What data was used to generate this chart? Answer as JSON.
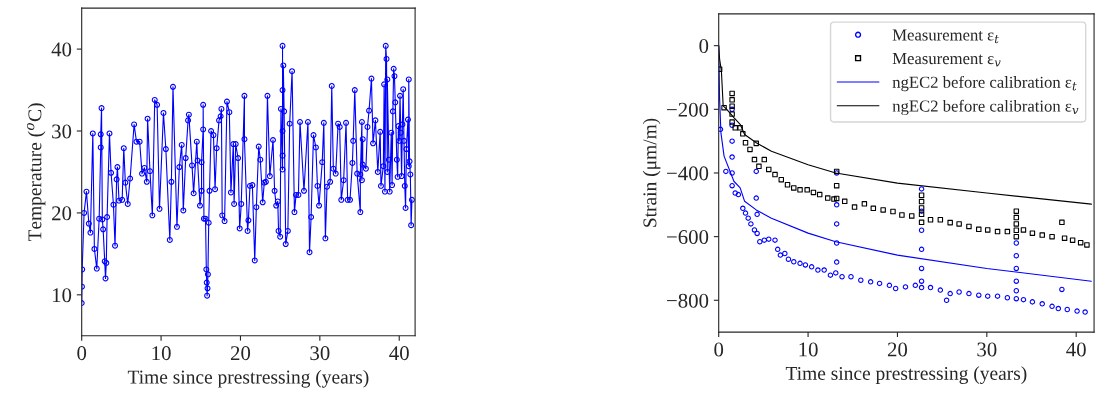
{
  "chart_data": [
    {
      "type": "line",
      "xlabel": "Time since prestressing (years)",
      "ylabel": "Temperature ($^{o}$C)",
      "xlim": [
        0,
        42
      ],
      "ylim": [
        5,
        45
      ],
      "xticks": [
        0,
        10,
        20,
        30,
        40
      ],
      "yticks": [
        10,
        20,
        30,
        40
      ],
      "grid": false,
      "legend": false,
      "series": [
        {
          "color": "#0000ff",
          "marker": "circle",
          "line_style": "solid",
          "x": [
            0,
            0.03,
            0.06,
            0.3,
            0.6,
            0.9,
            1.1,
            1.4,
            1.6,
            1.9,
            2.2,
            2.4,
            2.4,
            2.5,
            2.6,
            2.7,
            2.9,
            3.0,
            3.1,
            3.2,
            3.5,
            3.7,
            4.0,
            4.2,
            4.4,
            4.5,
            4.7,
            5.1,
            5.3,
            5.5,
            5.8,
            6.1,
            6.6,
            6.9,
            7.3,
            7.6,
            7.9,
            8.2,
            8.3,
            8.6,
            8.9,
            9.2,
            9.5,
            9.8,
            10.3,
            10.6,
            11.1,
            11.3,
            11.5,
            12.0,
            12.3,
            12.6,
            12.8,
            13.1,
            13.4,
            13.5,
            13.9,
            14.1,
            14.5,
            14.6,
            14.9,
            15.1,
            15.1,
            15.3,
            15.3,
            15.4,
            15.6,
            15.7,
            15.75,
            15.8,
            15.85,
            15.9,
            16.0,
            16.1,
            16.3,
            16.6,
            16.8,
            17.0,
            17.3,
            17.5,
            17.6,
            17.7,
            18.0,
            18.3,
            18.6,
            18.8,
            19.1,
            19.2,
            19.4,
            19.7,
            19.9,
            20.1,
            20.5,
            20.5,
            20.9,
            21.0,
            21.2,
            21.5,
            21.8,
            22.0,
            22.3,
            22.5,
            22.8,
            23.0,
            23.2,
            23.4,
            23.7,
            24.1,
            24.3,
            24.5,
            24.7,
            24.8,
            25.0,
            25.1,
            25.3,
            25.3,
            25.3,
            25.3,
            25.3,
            25.4,
            25.5,
            25.7,
            25.97,
            26.2,
            26.5,
            26.8,
            27.0,
            27.3,
            27.5,
            28.0,
            28.5,
            28.7,
            28.9,
            29.2,
            29.5,
            29.7,
            29.9,
            30.3,
            30.5,
            30.7,
            30.9,
            31.3,
            31.5,
            31.7,
            32.0,
            32.3,
            32.5,
            32.7,
            33.0,
            33.3,
            33.5,
            33.8,
            34.1,
            34.2,
            34.4,
            34.7,
            35.1,
            35.1,
            35.3,
            35.3,
            35.4,
            35.4,
            35.8,
            36.0,
            36.2,
            36.5,
            36.7,
            37.0,
            37.3,
            37.6,
            37.7,
            38.0,
            38.1,
            38.2,
            38.3,
            38.4,
            38.5,
            38.5,
            38.7,
            38.8,
            39.0,
            39.1,
            39.2,
            39.3,
            39.4,
            39.5,
            39.7,
            39.8,
            39.9,
            40.0,
            40.1,
            40.2,
            40.3,
            40.4,
            40.5,
            40.6,
            40.7,
            40.8,
            40.9,
            41.1,
            41.2,
            41.2,
            41.3,
            41.4,
            41.5,
            41.6
          ],
          "values": [
            9.0,
            11.0,
            13.1,
            20.0,
            22.6,
            18.7,
            17.6,
            29.7,
            15.6,
            13.2,
            19.3,
            28.0,
            29.6,
            32.8,
            19.2,
            18.0,
            14.1,
            12.0,
            13.9,
            19.5,
            29.7,
            24.9,
            21.0,
            16.0,
            24.1,
            25.6,
            21.5,
            21.6,
            27.9,
            23.7,
            21.1,
            24.2,
            30.8,
            28.7,
            28.7,
            24.8,
            25.5,
            23.8,
            31.5,
            25.1,
            19.7,
            33.8,
            33.2,
            20.5,
            32.2,
            27.8,
            16.7,
            23.8,
            35.4,
            18.3,
            25.6,
            28.3,
            20.3,
            26.7,
            31.3,
            32.0,
            25.8,
            22.4,
            28.7,
            26.4,
            20.9,
            22.7,
            26.2,
            30.2,
            33.2,
            19.3,
            19.3,
            13.1,
            11.5,
            9.9,
            10.8,
            12.5,
            18.8,
            22.7,
            30.0,
            29.5,
            22.9,
            27.9,
            31.3,
            31.8,
            32.7,
            19.7,
            19.0,
            33.6,
            32.3,
            22.5,
            28.4,
            21.1,
            28.4,
            26.7,
            18.1,
            21.1,
            34.3,
            29.0,
            17.8,
            19.1,
            23.3,
            23.4,
            14.2,
            20.7,
            28.1,
            26.5,
            21.3,
            23.7,
            23.8,
            34.3,
            24.5,
            28.9,
            22.7,
            20.9,
            21.4,
            17.8,
            17.1,
            32.7,
            25.3,
            30.0,
            35.0,
            40.4,
            27.0,
            38.0,
            32.4,
            16.2,
            17.8,
            30.9,
            37.3,
            20.1,
            22.2,
            22.2,
            31.1,
            22.7,
            31.1,
            15.2,
            19.5,
            29.5,
            28.0,
            23.3,
            20.9,
            26.2,
            31.0,
            16.9,
            23.2,
            23.8,
            35.5,
            25.4,
            24.8,
            30.9,
            30.5,
            21.6,
            24.0,
            31.0,
            21.6,
            21.6,
            26.1,
            28.8,
            35.0,
            24.8,
            20.1,
            24.7,
            31.1,
            24.0,
            29.0,
            25.9,
            25.4,
            30.5,
            32.5,
            36.4,
            28.5,
            31.3,
            25.0,
            29.9,
            23.3,
            25.7,
            35.7,
            22.6,
            40.4,
            38.8,
            25.0,
            36.3,
            26.5,
            22.6,
            29.8,
            23.4,
            32.4,
            37.6,
            36.7,
            33.5,
            26.5,
            24.4,
            30.6,
            28.8,
            34.3,
            29.8,
            24.5,
            30.8,
            35.1,
            28.8,
            23.3,
            20.6,
            27.8,
            31.4,
            25.7,
            36.3,
            26.3,
            24.7,
            18.5,
            21.6
          ]
        }
      ]
    },
    {
      "type": "scatter",
      "xlabel": "Time since prestressing (years)",
      "ylabel": "Strain (μm/m)",
      "xlim": [
        0,
        42
      ],
      "ylim": [
        -900,
        100
      ],
      "xticks": [
        0,
        10,
        20,
        30,
        40
      ],
      "yticks": [
        {
          "value": -800,
          "label": "−800"
        },
        {
          "value": -600,
          "label": "−600"
        },
        {
          "value": -400,
          "label": "−400"
        },
        {
          "value": -200,
          "label": "−200"
        },
        0
      ],
      "grid": false,
      "legend": "top right",
      "series": [
        {
          "name": "Measurement ε$_{t}$",
          "color": "#0000ff",
          "marker": "circle",
          "x": [
            0.2,
            0.8,
            1.5,
            1.5,
            1.5,
            1.5,
            1.5,
            1.5,
            1.85,
            2.2,
            2.7,
            3.0,
            3.3,
            3.6,
            4.0,
            4.2,
            4.2,
            4.3,
            4.3,
            4.6,
            5.1,
            5.6,
            6.3,
            6.6,
            6.9,
            7.4,
            7.8,
            8.4,
            9.1,
            9.7,
            10.4,
            11.1,
            11.8,
            12.5,
            13.1,
            13.2,
            13.2,
            13.2,
            13.2,
            13.2,
            13.8,
            14.8,
            15.9,
            17.0,
            18.0,
            19.1,
            19.8,
            20.9,
            22.0,
            22.7,
            22.7,
            22.7,
            22.7,
            22.7,
            22.7,
            22.7,
            23.7,
            24.8,
            25.5,
            25.9,
            26.9,
            28.0,
            29.1,
            30.1,
            31.2,
            32.3,
            33.3,
            33.3,
            33.3,
            33.3,
            33.3,
            33.3,
            34.1,
            35.1,
            36.2,
            37.3,
            38.0,
            38.4,
            39.0,
            40.1,
            41.0
          ],
          "values": [
            -263,
            -395,
            -200,
            -250,
            -300,
            -350,
            -400,
            -440,
            -463,
            -468,
            -511,
            -526,
            -542,
            -560,
            -579,
            -395,
            -479,
            -530,
            -590,
            -616,
            -611,
            -608,
            -611,
            -640,
            -658,
            -653,
            -671,
            -679,
            -684,
            -689,
            -695,
            -705,
            -705,
            -721,
            -714,
            -400,
            -500,
            -560,
            -620,
            -680,
            -726,
            -726,
            -737,
            -742,
            -747,
            -753,
            -763,
            -758,
            -753,
            -450,
            -520,
            -580,
            -640,
            -700,
            -740,
            -760,
            -760,
            -768,
            -800,
            -779,
            -774,
            -779,
            -784,
            -787,
            -787,
            -792,
            -620,
            -660,
            -700,
            -740,
            -770,
            -795,
            -798,
            -805,
            -811,
            -819,
            -826,
            -766,
            -829,
            -834,
            -837
          ]
        },
        {
          "name": "Measurement ε$_{v}$",
          "color": "#000000",
          "marker": "square",
          "x": [
            0.1,
            0.6,
            1.5,
            1.5,
            1.5,
            1.5,
            1.5,
            1.85,
            2.4,
            2.7,
            3.0,
            3.5,
            4.0,
            4.2,
            4.5,
            5.1,
            5.6,
            6.3,
            7.0,
            7.7,
            8.4,
            9.1,
            9.9,
            10.6,
            11.3,
            12.2,
            12.9,
            13.2,
            13.2,
            13.2,
            14.1,
            15.2,
            16.3,
            17.3,
            18.4,
            19.5,
            20.5,
            21.6,
            22.7,
            22.7,
            22.7,
            22.7,
            22.7,
            23.7,
            24.8,
            25.9,
            26.9,
            28.0,
            29.1,
            30.1,
            31.2,
            32.3,
            33.3,
            33.3,
            33.3,
            33.3,
            33.3,
            34.1,
            35.1,
            36.2,
            37.3,
            38.4,
            38.7,
            39.6,
            40.5,
            41.2
          ],
          "values": [
            -74,
            -195,
            -150,
            -170,
            -190,
            -215,
            -240,
            -258,
            -258,
            -277,
            -305,
            -326,
            -358,
            -307,
            -379,
            -358,
            -389,
            -405,
            -421,
            -437,
            -447,
            -453,
            -453,
            -461,
            -468,
            -479,
            -482,
            -395,
            -440,
            -480,
            -489,
            -507,
            -497,
            -511,
            -516,
            -521,
            -532,
            -535,
            -470,
            -490,
            -510,
            -530,
            -555,
            -547,
            -547,
            -556,
            -560,
            -568,
            -577,
            -579,
            -584,
            -584,
            -520,
            -540,
            -560,
            -580,
            -600,
            -579,
            -589,
            -595,
            -600,
            -555,
            -605,
            -611,
            -619,
            -626
          ]
        },
        {
          "type": "line",
          "name": "ngEC2 before calibration ε$_{t}$",
          "color": "#0000ff",
          "marker": "none",
          "line_style": "solid",
          "x": [
            0,
            0.1,
            0.25,
            0.6,
            1.7,
            2.4,
            2.9,
            4.2,
            5.9,
            10,
            13.1,
            20,
            30,
            41.7
          ],
          "values": [
            0,
            -168,
            -274,
            -347,
            -426,
            -447,
            -489,
            -516,
            -542,
            -589,
            -616,
            -658,
            -700,
            -740
          ]
        },
        {
          "type": "line",
          "name": "ngEC2 before calibration ε$_{v}$",
          "color": "#000000",
          "marker": "none",
          "line_style": "solid",
          "x": [
            0,
            0.1,
            0.3,
            0.5,
            0.9,
            1.7,
            2.4,
            2.9,
            4.2,
            5.9,
            10,
            13.1,
            20,
            30,
            41.7
          ],
          "values": [
            0,
            -42,
            -79,
            -189,
            -200,
            -226,
            -247,
            -279,
            -305,
            -332,
            -374,
            -400,
            -432,
            -463,
            -498
          ]
        }
      ]
    }
  ]
}
